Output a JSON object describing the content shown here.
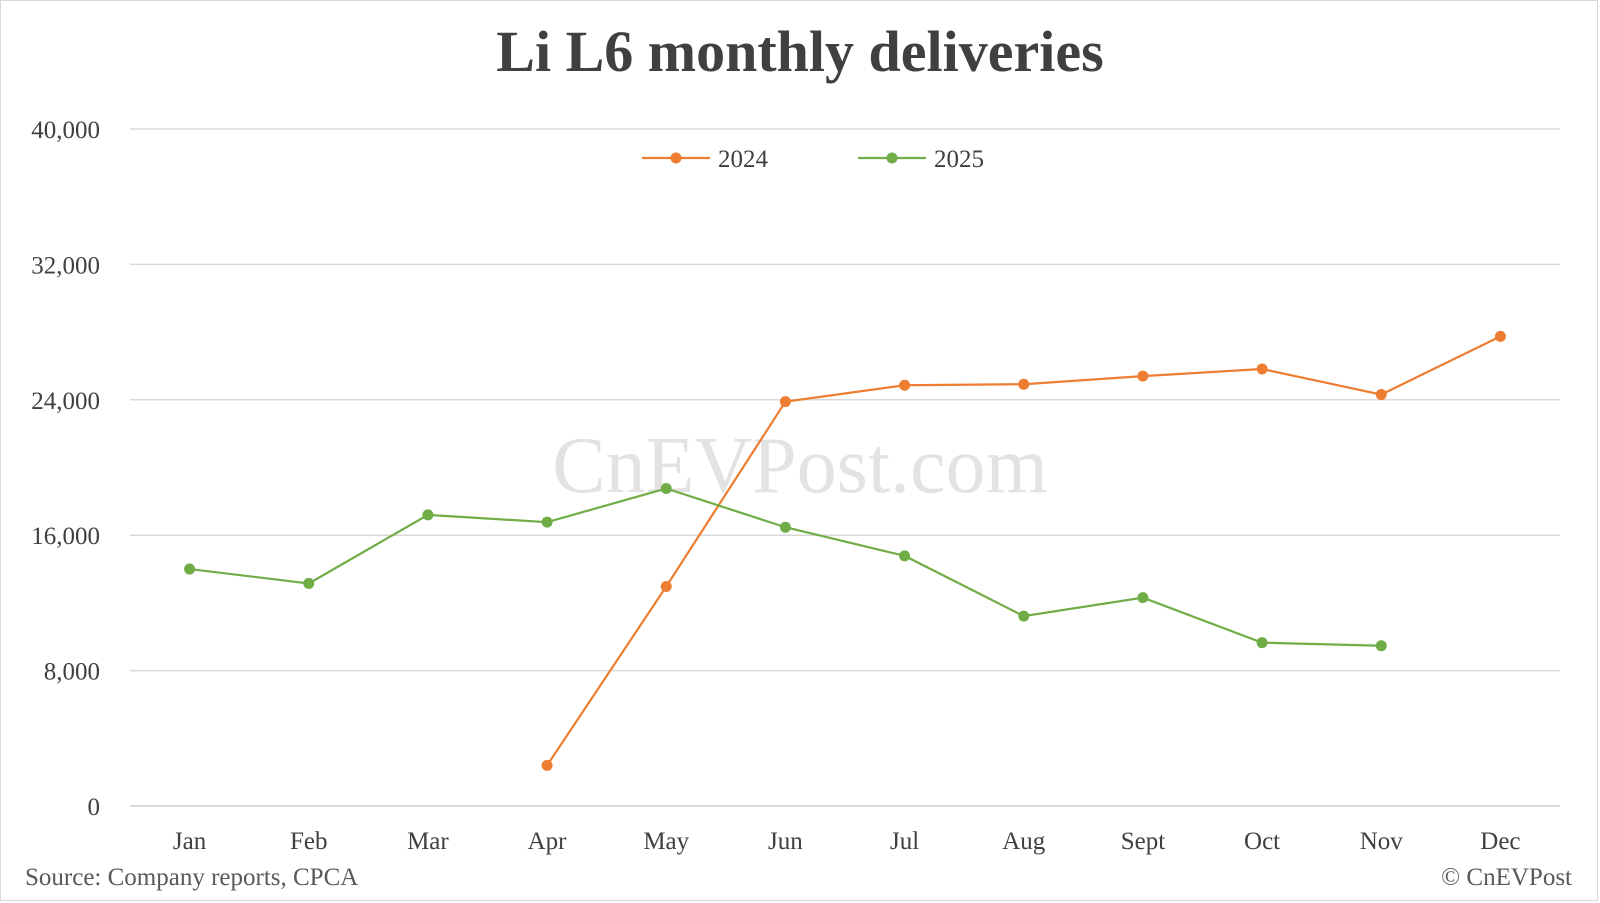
{
  "title": "Li L6 monthly deliveries",
  "watermark": "CnEVPost.com",
  "source": "Source: Company reports, CPCA",
  "copyright": "© CnEVPost",
  "colors": {
    "s2024": "#ED7D31",
    "s2025": "#70AD47",
    "grid": "#d9d9d9",
    "text": "#404040"
  },
  "chart_data": {
    "type": "line",
    "title": "Li L6 monthly deliveries",
    "xlabel": "",
    "ylabel": "",
    "categories": [
      "Jan",
      "Feb",
      "Mar",
      "Apr",
      "May",
      "Jun",
      "Jul",
      "Aug",
      "Sept",
      "Oct",
      "Nov",
      "Dec"
    ],
    "yticks": [
      "0",
      "8,000",
      "16,000",
      "24,000",
      "32,000",
      "40,000"
    ],
    "ylim": [
      0,
      40000
    ],
    "grid": true,
    "legend_position": "top",
    "series": [
      {
        "name": "2024",
        "color": "#ED7D31",
        "values": [
          null,
          null,
          null,
          2400,
          12970,
          23890,
          24860,
          24920,
          25400,
          25820,
          24310,
          27750
        ]
      },
      {
        "name": "2025",
        "color": "#70AD47",
        "values": [
          14000,
          13150,
          17200,
          16770,
          18760,
          16470,
          14780,
          11220,
          12310,
          9650,
          9470,
          null
        ]
      }
    ]
  }
}
